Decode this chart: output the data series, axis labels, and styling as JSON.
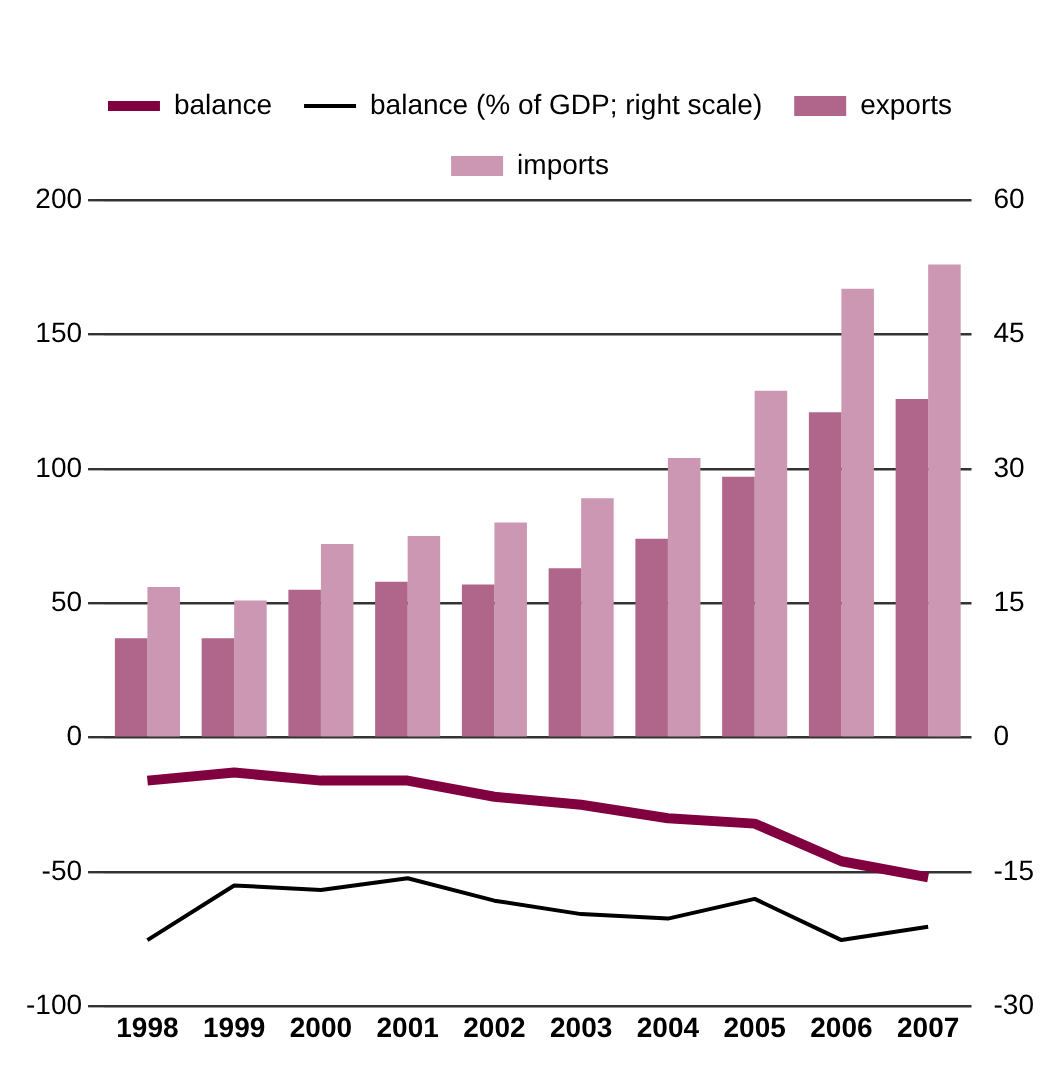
{
  "chart_data": {
    "type": "bar",
    "categories": [
      "1998",
      "1999",
      "2000",
      "2001",
      "2002",
      "2003",
      "2004",
      "2005",
      "2006",
      "2007"
    ],
    "series": [
      {
        "name": "exports",
        "color": "#b0668a",
        "values": [
          37,
          37,
          55,
          58,
          57,
          63,
          74,
          97,
          121,
          126
        ]
      },
      {
        "name": "imports",
        "color": "#cc97b2",
        "values": [
          56,
          51,
          72,
          75,
          80,
          89,
          104,
          129,
          167,
          176
        ]
      },
      {
        "name": "balance",
        "type": "line",
        "color": "#800040",
        "values": [
          -16,
          -13,
          -16,
          -16,
          -22,
          -25,
          -30,
          -32,
          -46,
          -52
        ]
      },
      {
        "name": "balance (% of GDP; right scale)",
        "type": "line",
        "axis": "y2",
        "color": "#000000",
        "values": [
          -22.6,
          -16.5,
          -17,
          -15.7,
          -18.2,
          -19.7,
          -20.2,
          -18,
          -22.6,
          -21.1
        ]
      }
    ],
    "ylim": [
      -100,
      200
    ],
    "yticks": [
      -100,
      -50,
      0,
      50,
      100,
      150,
      200
    ],
    "y2lim": [
      -30,
      60
    ],
    "y2ticks": [
      -30,
      -15,
      0,
      15,
      30,
      45,
      60
    ],
    "grid": "y",
    "legend": "top",
    "marker": "none",
    "line_style": "solid"
  }
}
